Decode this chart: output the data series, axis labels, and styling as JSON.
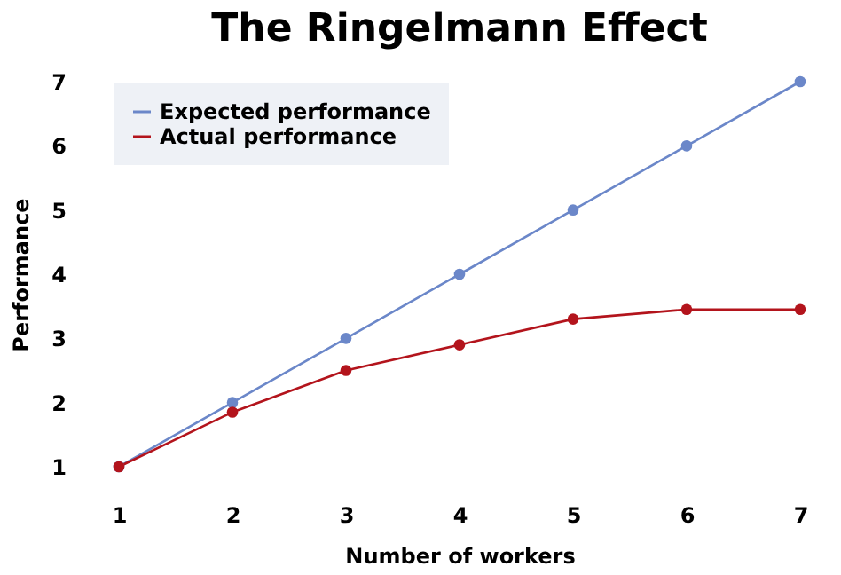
{
  "chart_data": {
    "type": "line",
    "title": "The Ringelmann Effect",
    "xlabel": "Number of workers",
    "ylabel": "Performance",
    "x": [
      1,
      2,
      3,
      4,
      5,
      6,
      7
    ],
    "series": [
      {
        "name": "Expected performance",
        "color": "#6b87c9",
        "values": [
          1,
          2,
          3,
          4,
          5,
          6,
          7
        ]
      },
      {
        "name": "Actual performance",
        "color": "#b3141c",
        "values": [
          1,
          1.85,
          2.5,
          2.9,
          3.3,
          3.45,
          3.45
        ]
      }
    ],
    "xlim": [
      1,
      7
    ],
    "xticks": [
      1,
      2,
      3,
      4,
      5,
      6,
      7
    ],
    "ylim": [
      1,
      7
    ],
    "yticks": [
      1,
      2,
      3,
      4,
      5,
      6,
      7
    ],
    "grid": false,
    "legend": "top left",
    "marker": "circle",
    "line_style": "solid"
  }
}
